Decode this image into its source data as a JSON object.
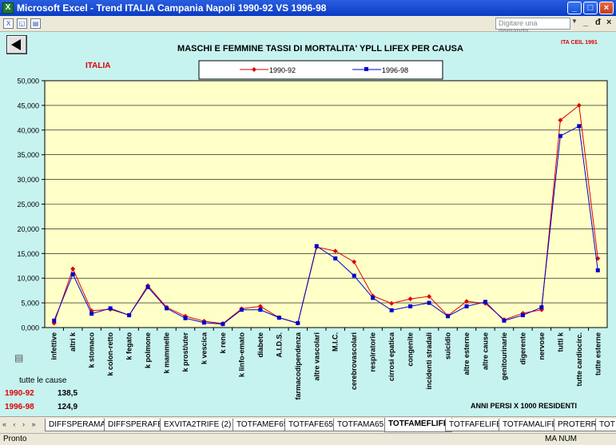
{
  "window": {
    "title": "Microsoft Excel - Trend ITALIA Campania Napoli 1990-92 VS 1996-98",
    "app_icon": "excel-icon",
    "controls": [
      "minimize",
      "maximize",
      "close"
    ]
  },
  "toolbar": {
    "icons": [
      "excel-doc-icon",
      "print-preview-icon",
      "print-icon"
    ],
    "help_placeholder": "Digitare una domanda.",
    "doc_controls": [
      "_",
      "а",
      "×"
    ]
  },
  "chart": {
    "subtitle_region": "ITALIA",
    "corner_note": "ITA CEIL 1991",
    "footer_note": "ANNI PERSI X 1000 RESIDENTI",
    "colors": {
      "series1": "#e00000",
      "series2": "#0000cc",
      "plot_bg": "#ffffc8",
      "area_bg": "#c6f3f0"
    }
  },
  "chart_data": {
    "type": "line",
    "title": "MASCHI E FEMMINE TASSI DI MORTALITA' YPLL LIFEX PER CAUSA",
    "xlabel": "",
    "ylabel": "",
    "ylim": [
      0,
      50000
    ],
    "yticks": [
      "0,000",
      "5,000",
      "10,000",
      "15,000",
      "20,000",
      "25,000",
      "30,000",
      "35,000",
      "40,000",
      "45,000",
      "50,000"
    ],
    "grid": true,
    "legend_position": "top-center",
    "categories": [
      "infettive",
      "altri k",
      "k stomaco",
      "k colon-retto",
      "k fegato",
      "k polmone",
      "k mammelle",
      "k prost/uter",
      "k vescica",
      "k rene",
      "k linfo-emato",
      "diabete",
      "A.I.D.S.",
      "farmacodipendenza",
      "altre vascolari",
      "M.I.C.",
      "cerebrovascolari",
      "respiratorie",
      "cirrosi epatica",
      "congenite",
      "incidenti stradali",
      "suicidio",
      "altre esterne",
      "altre cause",
      "genitourinarie",
      "digerente",
      "nervose",
      "tutti k",
      "tutte cardiocirc.",
      "tutte esterne"
    ],
    "series": [
      {
        "name": "1990-92",
        "values": [
          900,
          11900,
          3400,
          3700,
          2500,
          8500,
          4100,
          2300,
          1300,
          800,
          3800,
          4300,
          2000,
          900,
          16300,
          15500,
          13300,
          6400,
          4900,
          5800,
          6300,
          2400,
          5300,
          4900,
          1600,
          2900,
          3600,
          42000,
          45000,
          14000
        ]
      },
      {
        "name": "1996-98",
        "values": [
          1400,
          10800,
          2800,
          3900,
          2500,
          8200,
          3900,
          1900,
          1000,
          700,
          3600,
          3600,
          2000,
          900,
          16500,
          14000,
          10500,
          6000,
          3500,
          4300,
          5000,
          2300,
          4300,
          5200,
          1400,
          2500,
          4100,
          38800,
          40800,
          11600
        ]
      }
    ]
  },
  "summary": {
    "label": "tutte le cause",
    "rows": [
      {
        "name": "1990-92",
        "value": "138,5"
      },
      {
        "name": "1996-98",
        "value": "124,9"
      }
    ]
  },
  "sheets": {
    "nav": "« ‹ › »",
    "tabs": [
      "DIFFSPERAMA",
      "DIFFSPERAFE",
      "EXVITA2TRIFE (2)",
      "TOTFAMEF65",
      "TOTFAFE65",
      "TOTFAMA65",
      "TOTFAMEFLIFE",
      "TOTFAFELIFE",
      "TOTFAMALIFE",
      "PROTERR",
      "TOT"
    ],
    "active": "TOTFAMEFLIFE"
  },
  "status": {
    "left": "Pronto",
    "right": "MA NUM"
  }
}
